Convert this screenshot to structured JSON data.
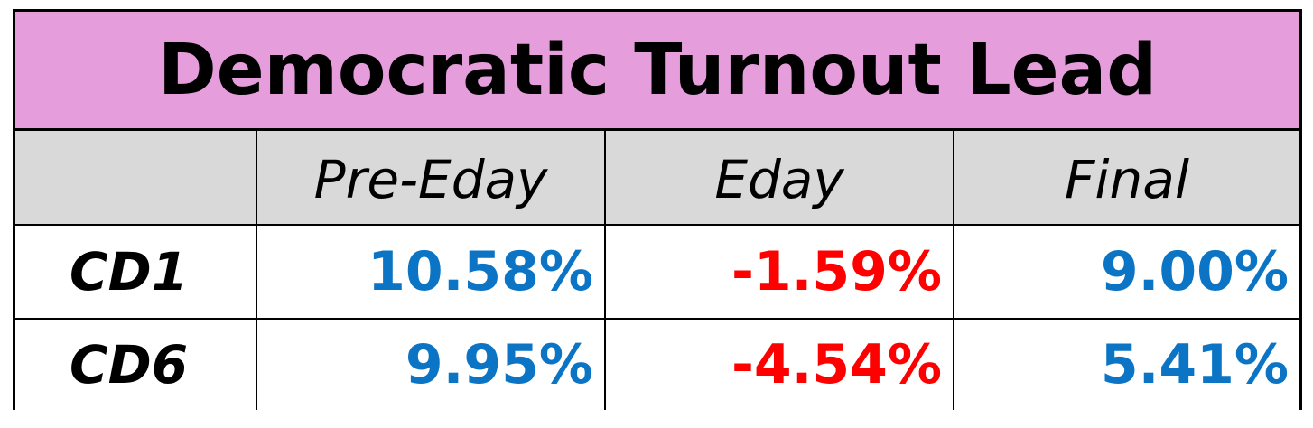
{
  "chart_data": {
    "type": "table",
    "title": "Democratic Turnout Lead",
    "columns": [
      "",
      "Pre-Eday",
      "Eday",
      "Final"
    ],
    "rows": [
      {
        "label": "CD1",
        "values": [
          "10.58%",
          "-1.59%",
          "9.00%"
        ]
      },
      {
        "label": "CD6",
        "values": [
          "9.95%",
          "-4.54%",
          "5.41%"
        ]
      }
    ],
    "colors": {
      "title_bg": "#e59edb",
      "header_bg": "#d9d9d9",
      "positive": "#0b74c4",
      "negative": "#ff0000",
      "border": "#000000"
    }
  }
}
